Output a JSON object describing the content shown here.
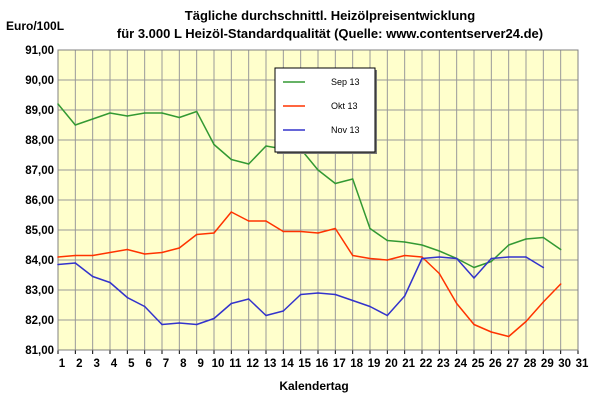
{
  "chart_data": {
    "type": "line",
    "title_line1": "Tägliche durchschnittl. Heizölpreisentwicklung",
    "title_line2": "für 3.000 L Heizöl-Standardqualität (Quelle: www.contentserver24.de)",
    "ylabel": "Euro/100L",
    "xlabel": "Kalendertag",
    "ylim": [
      81,
      91
    ],
    "yticks": [
      "81,00",
      "82,00",
      "83,00",
      "84,00",
      "85,00",
      "86,00",
      "87,00",
      "88,00",
      "89,00",
      "90,00",
      "91,00"
    ],
    "x": [
      1,
      2,
      3,
      4,
      5,
      6,
      7,
      8,
      9,
      10,
      11,
      12,
      13,
      14,
      15,
      16,
      17,
      18,
      19,
      20,
      21,
      22,
      23,
      24,
      25,
      26,
      27,
      28,
      29,
      30,
      31
    ],
    "xticks": [
      "1",
      "2",
      "3",
      "4",
      "5",
      "6",
      "7",
      "8",
      "9",
      "10",
      "11",
      "12",
      "13",
      "14",
      "15",
      "16",
      "17",
      "18",
      "19",
      "20",
      "21",
      "22",
      "23",
      "24",
      "25",
      "26",
      "27",
      "28",
      "29",
      "30",
      "31"
    ],
    "grid": true,
    "plot_background": "#ffffcc",
    "legend_position": "top-center",
    "series": [
      {
        "name": "Sep 13",
        "color": "#339933",
        "values": [
          89.2,
          88.5,
          88.7,
          88.9,
          88.8,
          88.9,
          88.9,
          88.75,
          88.95,
          87.85,
          87.35,
          87.2,
          87.8,
          87.7,
          87.7,
          87.0,
          86.55,
          86.7,
          85.05,
          84.65,
          84.6,
          84.5,
          84.3,
          84.05,
          83.75,
          83.95,
          84.5,
          84.7,
          84.75,
          84.35,
          null
        ]
      },
      {
        "name": "Okt 13",
        "color": "#ff3300",
        "values": [
          84.1,
          84.15,
          84.15,
          84.25,
          84.35,
          84.2,
          84.25,
          84.4,
          84.85,
          84.9,
          85.6,
          85.3,
          85.3,
          84.95,
          84.95,
          84.9,
          85.05,
          84.15,
          84.05,
          84.0,
          84.15,
          84.1,
          83.55,
          82.55,
          81.85,
          81.6,
          81.45,
          81.95,
          82.6,
          83.2,
          null
        ]
      },
      {
        "name": "Nov 13",
        "color": "#3333cc",
        "values": [
          83.85,
          83.9,
          83.45,
          83.25,
          82.75,
          82.45,
          81.85,
          81.9,
          81.85,
          82.05,
          82.55,
          82.7,
          82.15,
          82.3,
          82.85,
          82.9,
          82.85,
          82.65,
          82.45,
          82.15,
          82.8,
          84.05,
          84.1,
          84.05,
          83.4,
          84.05,
          84.1,
          84.1,
          83.75,
          null,
          null
        ]
      }
    ]
  }
}
